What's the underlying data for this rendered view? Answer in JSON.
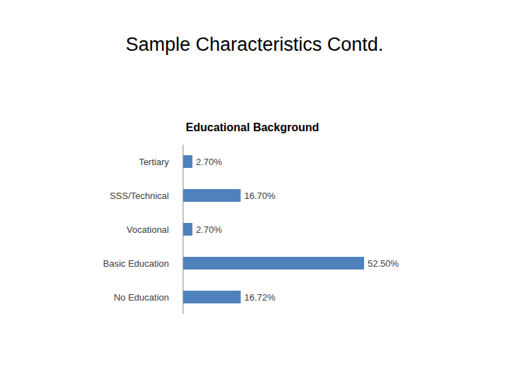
{
  "title": "Sample Characteristics Contd.",
  "chart_data": {
    "type": "bar",
    "title": "Educational Background",
    "orientation": "horizontal",
    "categories": [
      "Tertiary",
      "SSS/Technical",
      "Vocational",
      "Basic Education",
      "No Education"
    ],
    "values": [
      2.7,
      16.7,
      2.7,
      52.5,
      16.72
    ],
    "value_labels": [
      "2.70%",
      "16.70%",
      "2.70%",
      "52.50%",
      "16.72%"
    ],
    "color": "#4f81bd",
    "data_labels": true,
    "tick_labels": "y",
    "grid": false
  }
}
